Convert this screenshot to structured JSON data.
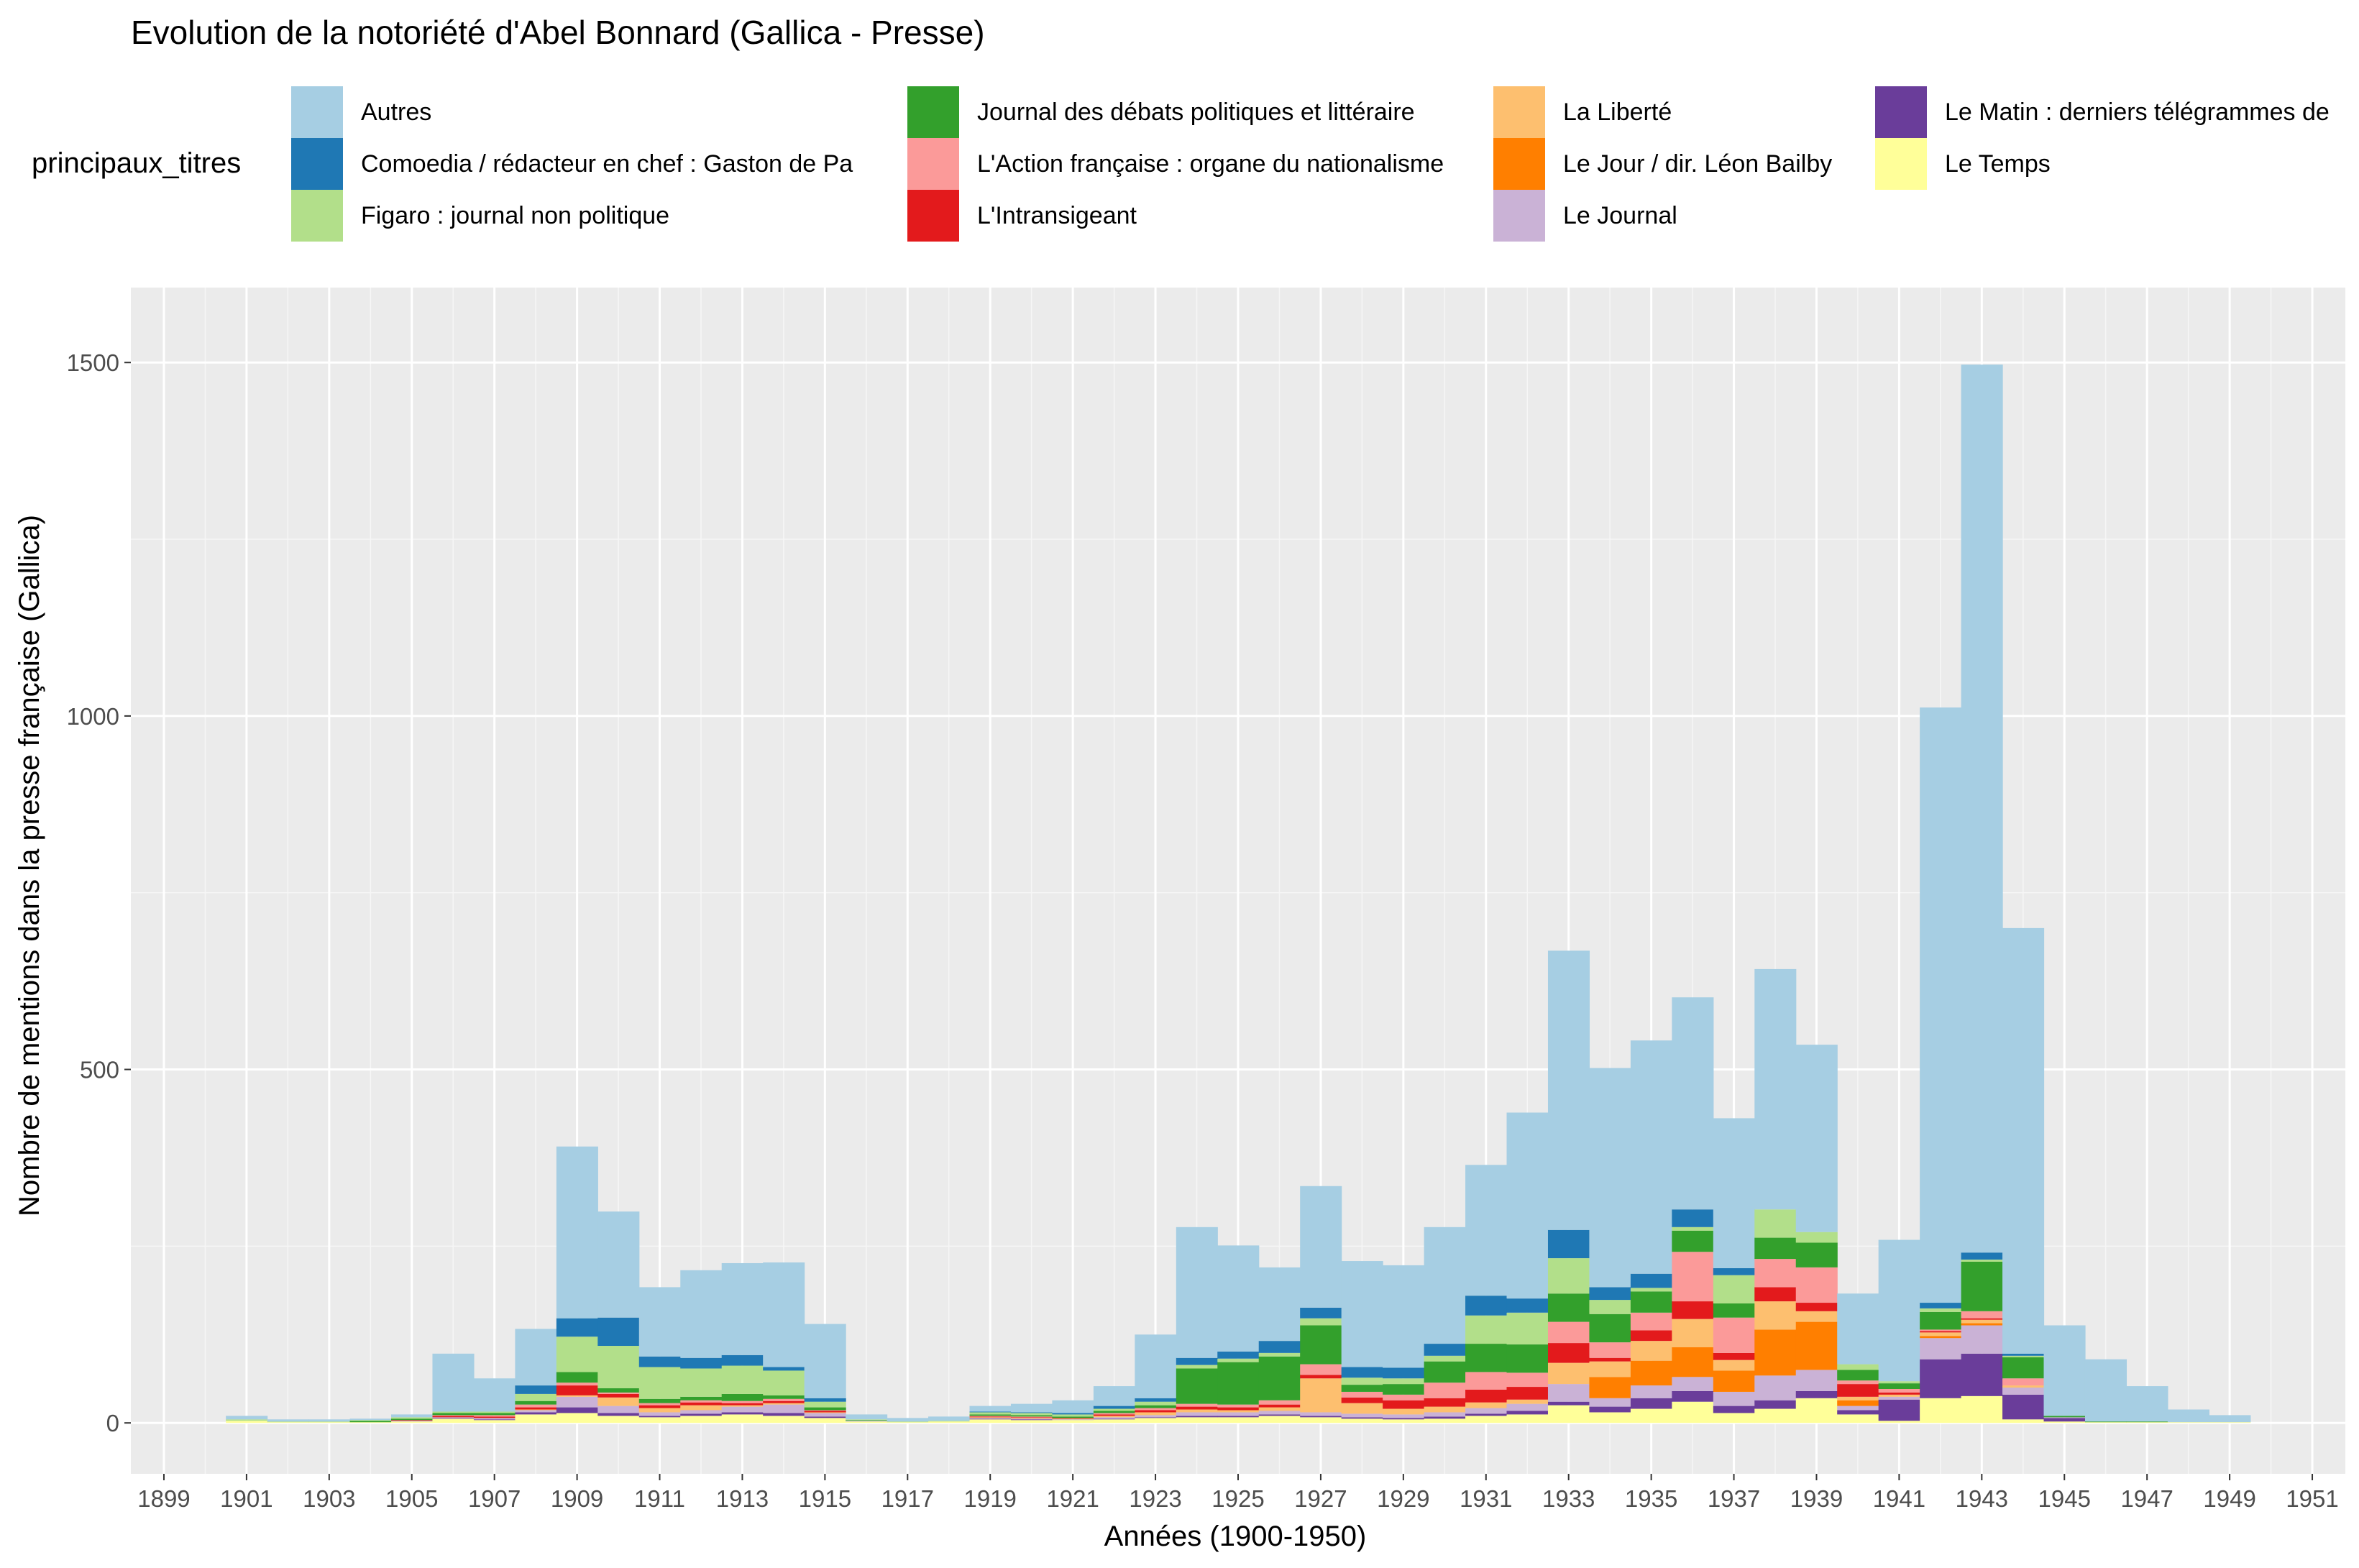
{
  "chart_data": {
    "type": "bar",
    "stacked": true,
    "title": "Evolution de la notoriété d'Abel Bonnard (Gallica - Presse)",
    "xlabel": "Années (1900-1950)",
    "ylabel": "Nombre de mentions dans la presse française (Gallica)",
    "legend_title": "principaux_titres",
    "legend_position": "top",
    "grid": true,
    "xlim": [
      1898.2,
      1951.8
    ],
    "ylim": [
      -72,
      1606
    ],
    "x_ticks": [
      "1899",
      "1901",
      "1903",
      "1905",
      "1907",
      "1909",
      "1911",
      "1913",
      "1915",
      "1917",
      "1919",
      "1921",
      "1923",
      "1925",
      "1927",
      "1929",
      "1931",
      "1933",
      "1935",
      "1937",
      "1939",
      "1941",
      "1943",
      "1945",
      "1947",
      "1949",
      "1951"
    ],
    "y_ticks": [
      "0",
      "500",
      "1000",
      "1500"
    ],
    "years": [
      1900,
      1901,
      1902,
      1903,
      1904,
      1905,
      1906,
      1907,
      1908,
      1909,
      1910,
      1911,
      1912,
      1913,
      1914,
      1915,
      1916,
      1917,
      1918,
      1919,
      1920,
      1921,
      1922,
      1923,
      1924,
      1925,
      1926,
      1927,
      1928,
      1929,
      1930,
      1931,
      1932,
      1933,
      1934,
      1935,
      1936,
      1937,
      1938,
      1939,
      1940,
      1941,
      1942,
      1943,
      1944,
      1945,
      1946,
      1947,
      1948,
      1949,
      1950
    ],
    "series": [
      {
        "name": "Le Temps",
        "color": "#FFFF99",
        "values": [
          0,
          3,
          1,
          1,
          1,
          2,
          6,
          4,
          12,
          14,
          10,
          8,
          10,
          12,
          10,
          7,
          2,
          1,
          2,
          5,
          4,
          4,
          5,
          7,
          8,
          8,
          10,
          8,
          6,
          5,
          6,
          10,
          12,
          25,
          15,
          20,
          30,
          14,
          20,
          35,
          12,
          3,
          35,
          38,
          5,
          2,
          1,
          1,
          1,
          1,
          0
        ]
      },
      {
        "name": "Le Matin : derniers télégrammes de",
        "color": "#6A3D9A",
        "values": [
          0,
          0,
          0,
          0,
          0,
          0,
          1,
          1,
          3,
          8,
          4,
          2,
          3,
          3,
          4,
          2,
          0,
          0,
          0,
          1,
          1,
          0,
          1,
          1,
          2,
          2,
          2,
          2,
          2,
          2,
          3,
          3,
          5,
          5,
          8,
          15,
          15,
          10,
          12,
          10,
          6,
          30,
          55,
          60,
          35,
          5,
          0,
          0,
          0,
          0,
          0
        ]
      },
      {
        "name": "Le Journal",
        "color": "#CAB2D6",
        "values": [
          0,
          0,
          0,
          0,
          0,
          1,
          1,
          2,
          3,
          15,
          10,
          5,
          5,
          8,
          12,
          5,
          1,
          0,
          0,
          1,
          1,
          1,
          2,
          3,
          5,
          5,
          5,
          5,
          5,
          5,
          6,
          8,
          10,
          25,
          12,
          18,
          20,
          20,
          35,
          30,
          6,
          4,
          30,
          40,
          10,
          1,
          0,
          0,
          0,
          0,
          0
        ]
      },
      {
        "name": "Le Jour / dir. Léon Bailby",
        "color": "#FF7F00",
        "values": [
          0,
          0,
          0,
          0,
          0,
          0,
          0,
          0,
          0,
          0,
          0,
          0,
          0,
          0,
          0,
          0,
          0,
          0,
          0,
          0,
          0,
          0,
          0,
          0,
          0,
          0,
          0,
          0,
          0,
          0,
          0,
          0,
          0,
          0,
          30,
          35,
          42,
          30,
          65,
          68,
          8,
          0,
          3,
          3,
          0,
          0,
          0,
          0,
          0,
          0,
          0
        ]
      },
      {
        "name": "La Liberté",
        "color": "#FDBF6F",
        "values": [
          0,
          0,
          0,
          0,
          0,
          0,
          0,
          0,
          1,
          2,
          12,
          6,
          7,
          2,
          2,
          1,
          0,
          0,
          0,
          1,
          1,
          1,
          2,
          4,
          4,
          3,
          5,
          48,
          15,
          8,
          8,
          8,
          6,
          30,
          22,
          28,
          40,
          15,
          40,
          15,
          5,
          3,
          5,
          5,
          3,
          0,
          0,
          0,
          0,
          0,
          0
        ]
      },
      {
        "name": "L'Intransigeant",
        "color": "#E31A1C",
        "values": [
          0,
          0,
          0,
          0,
          0,
          1,
          2,
          2,
          3,
          14,
          5,
          4,
          4,
          3,
          3,
          2,
          0,
          0,
          0,
          1,
          1,
          1,
          2,
          3,
          4,
          4,
          4,
          5,
          8,
          12,
          12,
          18,
          18,
          28,
          5,
          15,
          25,
          10,
          20,
          12,
          18,
          3,
          2,
          2,
          0,
          0,
          0,
          0,
          0,
          0,
          0
        ]
      },
      {
        "name": "L'Action française : organe du nationalisme",
        "color": "#FB9A99",
        "values": [
          0,
          0,
          0,
          0,
          0,
          0,
          1,
          2,
          4,
          4,
          2,
          3,
          3,
          3,
          3,
          1,
          0,
          0,
          0,
          1,
          1,
          0,
          2,
          3,
          4,
          4,
          6,
          15,
          8,
          8,
          22,
          25,
          20,
          30,
          22,
          25,
          70,
          50,
          40,
          50,
          5,
          5,
          2,
          10,
          10,
          0,
          0,
          0,
          0,
          0,
          0
        ]
      },
      {
        "name": "Journal des débats politiques et littéraire",
        "color": "#33A02C",
        "values": [
          0,
          0,
          0,
          0,
          2,
          2,
          3,
          3,
          5,
          15,
          6,
          6,
          5,
          10,
          5,
          4,
          1,
          0,
          0,
          2,
          2,
          2,
          3,
          4,
          50,
          60,
          62,
          55,
          10,
          15,
          30,
          40,
          40,
          40,
          40,
          30,
          30,
          20,
          30,
          35,
          15,
          8,
          25,
          70,
          30,
          2,
          1,
          1,
          0,
          0,
          0
        ]
      },
      {
        "name": "Figaro : journal non politique",
        "color": "#B2DF8A",
        "values": [
          0,
          2,
          1,
          1,
          1,
          2,
          2,
          2,
          10,
          50,
          60,
          45,
          40,
          40,
          35,
          8,
          1,
          1,
          1,
          3,
          3,
          3,
          3,
          5,
          5,
          5,
          5,
          10,
          10,
          8,
          8,
          40,
          45,
          50,
          20,
          5,
          5,
          40,
          40,
          15,
          8,
          3,
          5,
          3,
          2,
          0,
          0,
          0,
          0,
          0,
          0
        ]
      },
      {
        "name": "Comoedia / rédacteur en chef : Gaston de Pa",
        "color": "#1F78B4",
        "values": [
          0,
          0,
          0,
          0,
          0,
          0,
          0,
          0,
          12,
          26,
          40,
          15,
          15,
          15,
          5,
          5,
          0,
          0,
          0,
          1,
          1,
          2,
          4,
          5,
          10,
          10,
          17,
          15,
          15,
          15,
          17,
          28,
          20,
          40,
          18,
          20,
          25,
          10,
          0,
          0,
          0,
          0,
          8,
          10,
          3,
          0,
          0,
          0,
          0,
          0,
          0
        ]
      },
      {
        "name": "Autres",
        "color": "#A6CEE3",
        "values": [
          0,
          5,
          3,
          3,
          2,
          4,
          82,
          47,
          80,
          243,
          150,
          98,
          124,
          130,
          148,
          105,
          7,
          5,
          6,
          8,
          12,
          18,
          28,
          90,
          185,
          150,
          104,
          172,
          150,
          145,
          165,
          185,
          263,
          395,
          310,
          330,
          300,
          212,
          340,
          265,
          100,
          200,
          842,
          1256,
          602,
          128,
          88,
          50,
          18,
          10,
          0
        ]
      }
    ]
  }
}
